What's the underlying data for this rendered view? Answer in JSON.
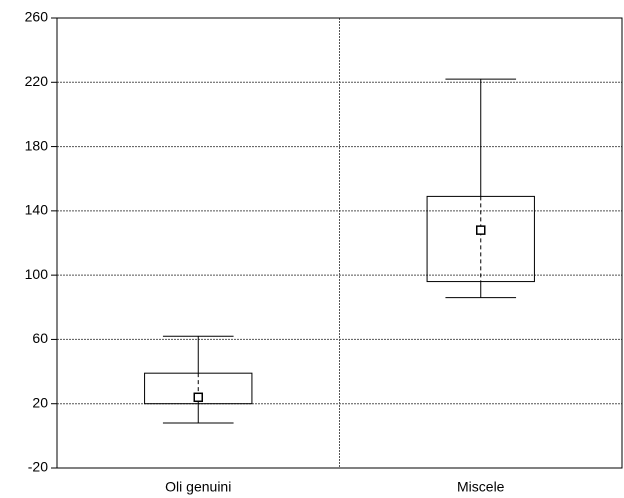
{
  "chart_data": {
    "type": "box",
    "categories": [
      "Oli genuini",
      "Miscele"
    ],
    "min": [
      8,
      86
    ],
    "q1": [
      20,
      96
    ],
    "median": [
      24,
      128
    ],
    "q3": [
      39,
      149
    ],
    "max": [
      62,
      222
    ],
    "color": "#000000",
    "ylim": [
      -20,
      260
    ],
    "yticks": [
      -20,
      20,
      60,
      100,
      140,
      180,
      220,
      260
    ],
    "grid": true
  }
}
